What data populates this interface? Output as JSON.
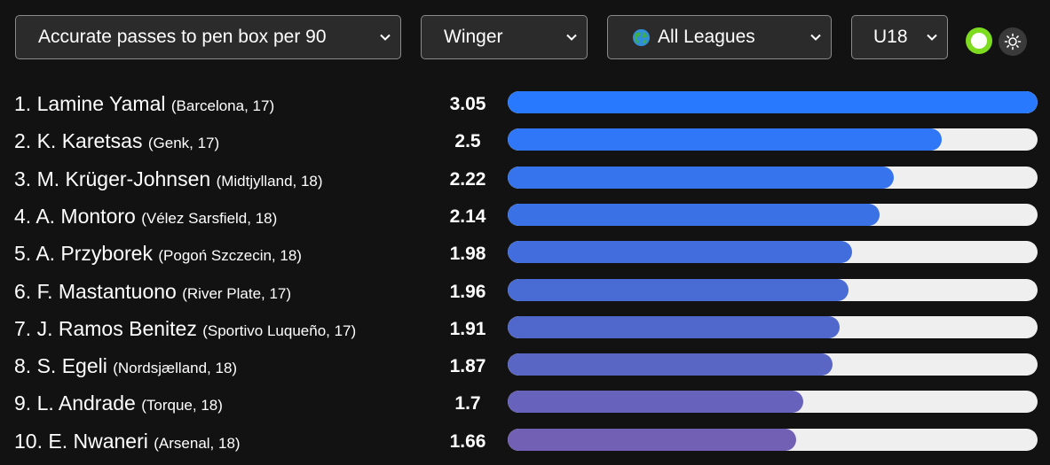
{
  "filters": {
    "metric": "Accurate passes to pen box per 90",
    "position": "Winger",
    "league": "All Leagues",
    "age": "U18"
  },
  "icons": {
    "chevron": "chevron-down-icon",
    "globe": "globe-icon",
    "toggle": "toggle-switch",
    "theme": "sun-icon"
  },
  "colors": {
    "background": "#121212",
    "toggle_on": "#7ddc1f",
    "track": "#efefef",
    "bar_top": "#2979ff",
    "bar_bottom": "#7a5fb0"
  },
  "max_value": 3.05,
  "rankings": [
    {
      "rank": "1.",
      "name": "Lamine Yamal",
      "team": "(Barcelona, 17)",
      "value": "3.05",
      "num": 3.05,
      "color": "#2979ff"
    },
    {
      "rank": "2.",
      "name": "K. Karetsas",
      "team": "(Genk, 17)",
      "value": "2.5",
      "num": 2.5,
      "color": "#2f77f6"
    },
    {
      "rank": "3.",
      "name": "M. Krüger-Johnsen",
      "team": "(Midtjylland, 18)",
      "value": "2.22",
      "num": 2.22,
      "color": "#3574ed"
    },
    {
      "rank": "4.",
      "name": "A. Montoro",
      "team": "(Vélez Sarsfield, 18)",
      "value": "2.14",
      "num": 2.14,
      "color": "#3a71e5"
    },
    {
      "rank": "5.",
      "name": "A. Przyborek",
      "team": "(Pogoń Szczecin, 18)",
      "value": "1.98",
      "num": 1.98,
      "color": "#416edc"
    },
    {
      "rank": "6.",
      "name": "F. Mastantuono",
      "team": "(River Plate, 17)",
      "value": "1.96",
      "num": 1.96,
      "color": "#486bd4"
    },
    {
      "rank": "7.",
      "name": "J. Ramos Benitez",
      "team": "(Sportivo Luqueño, 17)",
      "value": "1.91",
      "num": 1.91,
      "color": "#5068cb"
    },
    {
      "rank": "8.",
      "name": "S. Egeli",
      "team": "(Nordsjælland, 18)",
      "value": "1.87",
      "num": 1.87,
      "color": "#5966c4"
    },
    {
      "rank": "9.",
      "name": "L. Andrade",
      "team": "(Torque, 18)",
      "value": "1.7",
      "num": 1.7,
      "color": "#6763bc"
    },
    {
      "rank": "10.",
      "name": "E. Nwaneri",
      "team": "(Arsenal, 18)",
      "value": "1.66",
      "num": 1.66,
      "color": "#7260b5"
    }
  ]
}
